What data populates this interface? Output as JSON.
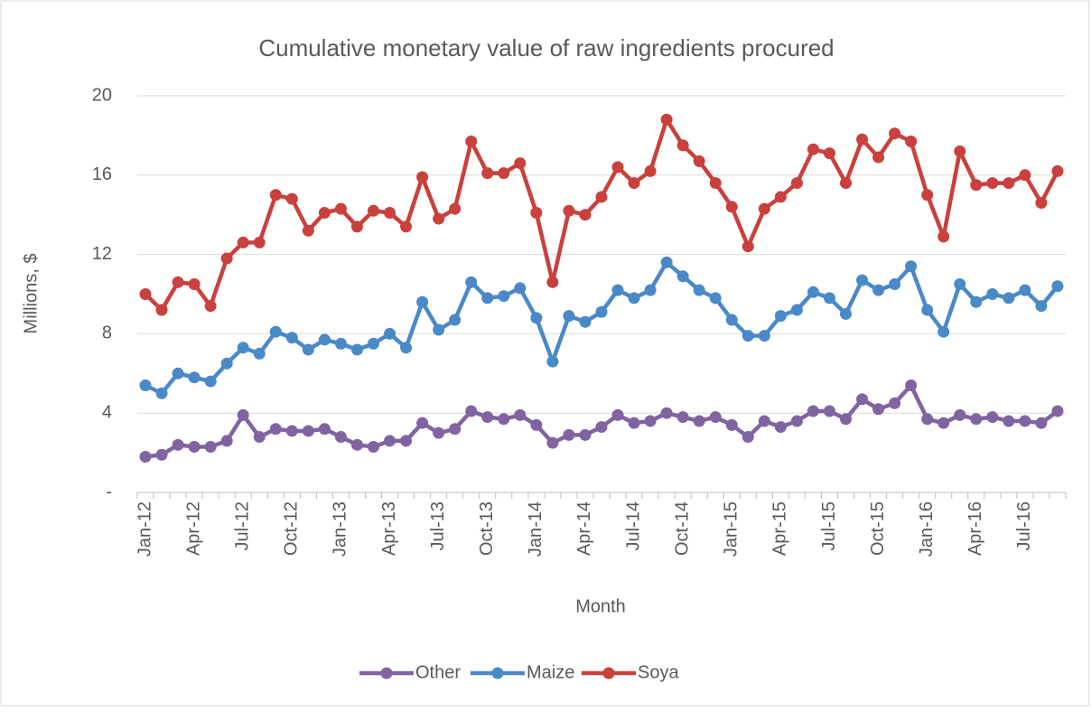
{
  "chart_data": {
    "type": "line",
    "title": "Cumulative monetary value of raw ingredients procured",
    "xlabel": "Month",
    "ylabel": "Millions, $",
    "categories": [
      "Jan-12",
      null,
      null,
      "Apr-12",
      null,
      null,
      "Jul-12",
      null,
      null,
      "Oct-12",
      null,
      null,
      "Jan-13",
      null,
      null,
      "Apr-13",
      null,
      null,
      "Jul-13",
      null,
      null,
      "Oct-13",
      null,
      null,
      "Jan-14",
      null,
      null,
      "Apr-14",
      null,
      null,
      "Jul-14",
      null,
      null,
      "Oct-14",
      null,
      null,
      "Jan-15",
      null,
      null,
      "Apr-15",
      null,
      null,
      "Jul-15",
      null,
      null,
      "Oct-15",
      null,
      null,
      "Jan-16",
      null,
      null,
      "Apr-16",
      null,
      null,
      "Jul-16",
      null,
      null
    ],
    "series": [
      {
        "name": "Other",
        "color": "#8064a2",
        "values": [
          1.8,
          1.9,
          2.4,
          2.3,
          2.3,
          2.6,
          3.9,
          2.8,
          3.2,
          3.1,
          3.1,
          3.2,
          2.8,
          2.4,
          2.3,
          2.6,
          2.6,
          3.5,
          3.0,
          3.2,
          4.1,
          3.8,
          3.7,
          3.9,
          3.4,
          2.5,
          2.9,
          2.9,
          3.3,
          3.9,
          3.5,
          3.6,
          4.0,
          3.8,
          3.6,
          3.8,
          3.4,
          2.8,
          3.6,
          3.3,
          3.6,
          4.1,
          4.1,
          3.7,
          4.7,
          4.2,
          4.5,
          5.4,
          3.7,
          3.5,
          3.9,
          3.7,
          3.8,
          3.6,
          3.6,
          3.5,
          4.1
        ]
      },
      {
        "name": "Maize",
        "color": "#4a89c8",
        "values": [
          5.4,
          5.0,
          6.0,
          5.8,
          5.6,
          6.5,
          7.3,
          7.0,
          8.1,
          7.8,
          7.2,
          7.7,
          7.5,
          7.2,
          7.5,
          8.0,
          7.3,
          9.6,
          8.2,
          8.7,
          10.6,
          9.8,
          9.9,
          10.3,
          8.8,
          6.6,
          8.9,
          8.6,
          9.1,
          10.2,
          9.8,
          10.2,
          11.6,
          10.9,
          10.2,
          9.8,
          8.7,
          7.9,
          7.9,
          8.9,
          9.2,
          10.1,
          9.8,
          9.0,
          10.7,
          10.2,
          10.5,
          11.4,
          9.2,
          8.1,
          10.5,
          9.6,
          10.0,
          9.8,
          10.2,
          9.4,
          10.4
        ]
      },
      {
        "name": "Soya",
        "color": "#c9403c",
        "values": [
          10.0,
          9.2,
          10.6,
          10.5,
          9.4,
          11.8,
          12.6,
          12.6,
          15.0,
          14.8,
          13.2,
          14.1,
          14.3,
          13.4,
          14.2,
          14.1,
          13.4,
          15.9,
          13.8,
          14.3,
          17.7,
          16.1,
          16.1,
          16.6,
          14.1,
          10.6,
          14.2,
          14.0,
          14.9,
          16.4,
          15.6,
          16.2,
          18.8,
          17.5,
          16.7,
          15.6,
          14.4,
          12.4,
          14.3,
          14.9,
          15.6,
          17.3,
          17.1,
          15.6,
          17.8,
          16.9,
          18.1,
          17.7,
          15.0,
          12.9,
          17.2,
          15.5,
          15.6,
          15.6,
          16.0,
          14.6,
          16.2
        ]
      }
    ],
    "ylim": [
      0,
      20
    ],
    "yticks": [
      {
        "value": 0,
        "label": "-"
      },
      4,
      8,
      12,
      16,
      20
    ],
    "grid": true,
    "legend": "bottom"
  }
}
